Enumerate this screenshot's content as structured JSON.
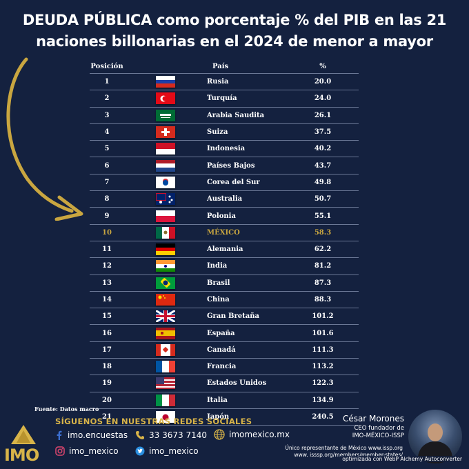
{
  "title": {
    "line1": "DEUDA PÚBLICA como porcentaje % del PIB en las 21",
    "line2": "naciones billonarias en el 2024 de menor a mayor"
  },
  "table": {
    "headers": {
      "pos": "Posición",
      "country": "País",
      "pct": "%"
    },
    "rows": [
      {
        "pos": "1",
        "country": "Rusia",
        "pct": "20.0",
        "flag": "russia-flag"
      },
      {
        "pos": "2",
        "country": "Turquía",
        "pct": "24.0",
        "flag": "turkey-flag"
      },
      {
        "pos": "3",
        "country": "Arabia Saudita",
        "pct": "26.1",
        "flag": "saudi-arabia-flag"
      },
      {
        "pos": "4",
        "country": "Suiza",
        "pct": "37.5",
        "flag": "switzerland-flag"
      },
      {
        "pos": "5",
        "country": "Indonesia",
        "pct": "40.2",
        "flag": "indonesia-flag"
      },
      {
        "pos": "6",
        "country": "Países Bajos",
        "pct": "43.7",
        "flag": "netherlands-flag"
      },
      {
        "pos": "7",
        "country": "Corea del Sur",
        "pct": "49.8",
        "flag": "south-korea-flag"
      },
      {
        "pos": "8",
        "country": "Australia",
        "pct": "50.7",
        "flag": "australia-flag"
      },
      {
        "pos": "9",
        "country": "Polonia",
        "pct": "55.1",
        "flag": "poland-flag"
      },
      {
        "pos": "10",
        "country": "MÉXICO",
        "pct": "58.3",
        "flag": "mexico-flag",
        "highlight": true
      },
      {
        "pos": "11",
        "country": "Alemania",
        "pct": "62.2",
        "flag": "germany-flag"
      },
      {
        "pos": "12",
        "country": "India",
        "pct": "81.2",
        "flag": "india-flag"
      },
      {
        "pos": "13",
        "country": "Brasil",
        "pct": "87.3",
        "flag": "brazil-flag"
      },
      {
        "pos": "14",
        "country": "China",
        "pct": "88.3",
        "flag": "china-flag"
      },
      {
        "pos": "15",
        "country": "Gran Bretaña",
        "pct": "101.2",
        "flag": "uk-flag"
      },
      {
        "pos": "16",
        "country": "España",
        "pct": "101.6",
        "flag": "spain-flag"
      },
      {
        "pos": "17",
        "country": "Canadá",
        "pct": "111.3",
        "flag": "canada-flag"
      },
      {
        "pos": "18",
        "country": "Francia",
        "pct": "113.2",
        "flag": "france-flag"
      },
      {
        "pos": "19",
        "country": "Estados Unidos",
        "pct": "122.3",
        "flag": "usa-flag"
      },
      {
        "pos": "20",
        "country": "Italia",
        "pct": "134.9",
        "flag": "italy-flag"
      },
      {
        "pos": "21",
        "country": "Japón",
        "pct": "240.5",
        "flag": "japan-flag"
      }
    ]
  },
  "source": "Fuente: Datos macro",
  "social": {
    "heading": "SÍGUENOS EN NUESTRAS REDES SOCIALES",
    "facebook": "imo.encuestas",
    "phone": "33 3673 7140",
    "website": "imomexico.mx",
    "instagram": "imo_mexico",
    "twitter": "imo_mexico"
  },
  "logo": {
    "text": "IMO"
  },
  "ceo": {
    "name": "César Morones",
    "role1": "CEO fundador de",
    "role2": "IMO-MÉXICO-ISSP",
    "note1": "Único representante de México www.issp.org",
    "note2": "www. isssp.org/members/member-states/"
  },
  "watermark": "optimizada con WebP Alchemy Autoconverter",
  "colors": {
    "background": "#14213f",
    "accent_gold": "#d8b449",
    "highlight_row": "#c9a640",
    "text": "#ffffff"
  }
}
